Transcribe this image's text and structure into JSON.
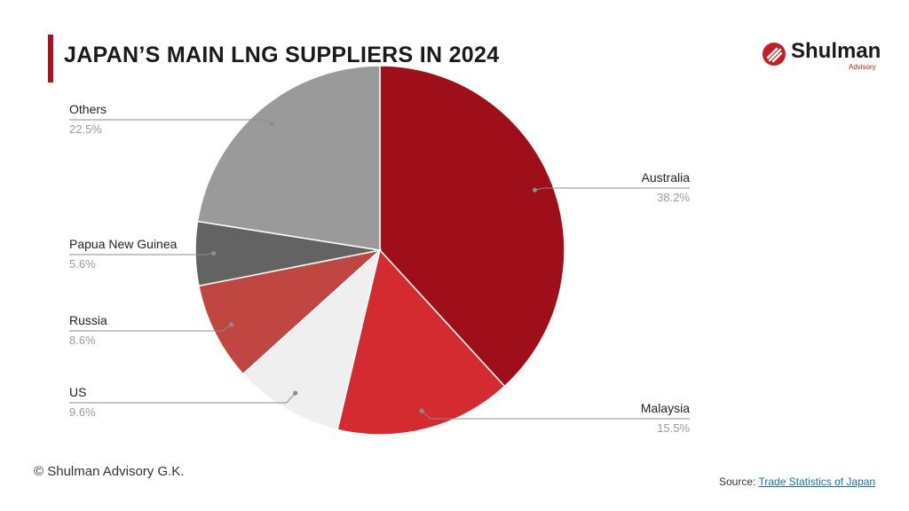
{
  "title": "JAPAN’S MAIN LNG SUPPLIERS IN 2024",
  "logo": {
    "name": "Shulman",
    "sub": "Advisory",
    "icon": "shulman-logo-icon",
    "color": "#c41c24"
  },
  "accent_color": "#a8131c",
  "footer": {
    "copyright": "© Shulman Advisory G.K.",
    "source_label": "Source:",
    "source_link": "Trade Statistics of Japan"
  },
  "chart_data": {
    "type": "pie",
    "title": "JAPAN’S MAIN LNG SUPPLIERS IN 2024",
    "start_angle_deg": 0,
    "direction": "clockwise",
    "slices": [
      {
        "label": "Australia",
        "value": 38.2,
        "display": "38.2%",
        "color": "#9f0f19"
      },
      {
        "label": "Malaysia",
        "value": 15.5,
        "display": "15.5%",
        "color": "#d42b30"
      },
      {
        "label": "US",
        "value": 9.6,
        "display": "9.6%",
        "color": "#efefef"
      },
      {
        "label": "Russia",
        "value": 8.6,
        "display": "8.6%",
        "color": "#c04642"
      },
      {
        "label": "Papua New Guinea",
        "value": 5.6,
        "display": "5.6%",
        "color": "#636363"
      },
      {
        "label": "Others",
        "value": 22.5,
        "display": "22.5%",
        "color": "#9a9a9a"
      }
    ]
  }
}
